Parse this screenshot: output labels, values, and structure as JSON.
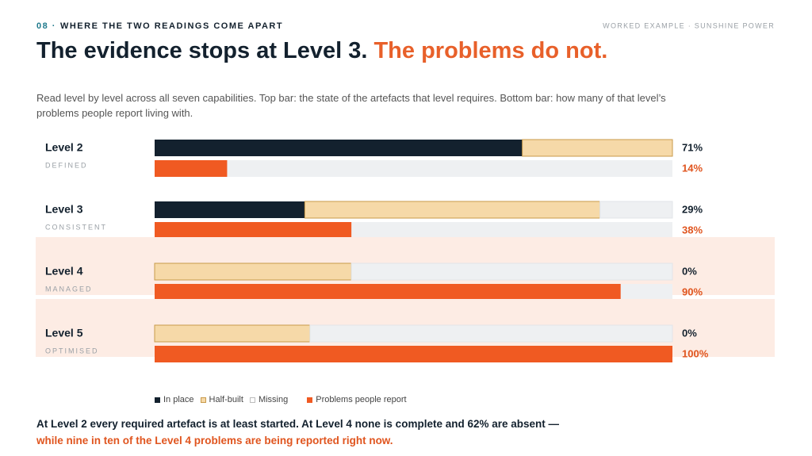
{
  "chart_data": {
    "type": "stacked-bar-pair",
    "section": "08 ·",
    "eyebrow": "WHERE THE TWO READINGS COME APART",
    "context": "WORKED EXAMPLE · SUNSHINE POWER",
    "title": "The evidence stops at Level 3.",
    "title_highlight": "The problems do not.",
    "description": "Read level by level across all seven capabilities. Top bar: the state of the artefacts that level requires. Bottom bar: how many of that level’s problems people report living with.",
    "categories": [
      "Level 2",
      "Level 3",
      "Level 4",
      "Level 5"
    ],
    "sublabels": [
      "DEFINED",
      "CONSISTENT",
      "MANAGED",
      "OPTIMISED"
    ],
    "highlight": [
      2,
      3
    ],
    "xlim": [
      0,
      100
    ],
    "series": [
      {
        "name": "In place",
        "color": "#13212e",
        "stack": "top",
        "values": [
          71,
          29,
          0,
          0
        ],
        "value_labels": [
          "71%",
          "29%",
          "0%",
          "0%"
        ]
      },
      {
        "name": "Half-built",
        "color": "#f6d9a8",
        "stack": "top",
        "values": [
          29,
          57,
          38,
          30
        ]
      },
      {
        "name": "Missing",
        "color": "#eef0f2",
        "stack": "top",
        "values": [
          0,
          14,
          62,
          70
        ]
      },
      {
        "name": "Problems people report",
        "color": "#f05a22",
        "stack": "bottom",
        "values": [
          14,
          38,
          90,
          100
        ],
        "value_labels": [
          "14%",
          "38%",
          "90%",
          "100%"
        ]
      }
    ],
    "footnote": "At Level 2 every required artefact is at least started. At Level 4 none is complete and 62% are absent —",
    "footnote_highlight": "while nine in ten of the Level 4 problems are being reported right now."
  }
}
